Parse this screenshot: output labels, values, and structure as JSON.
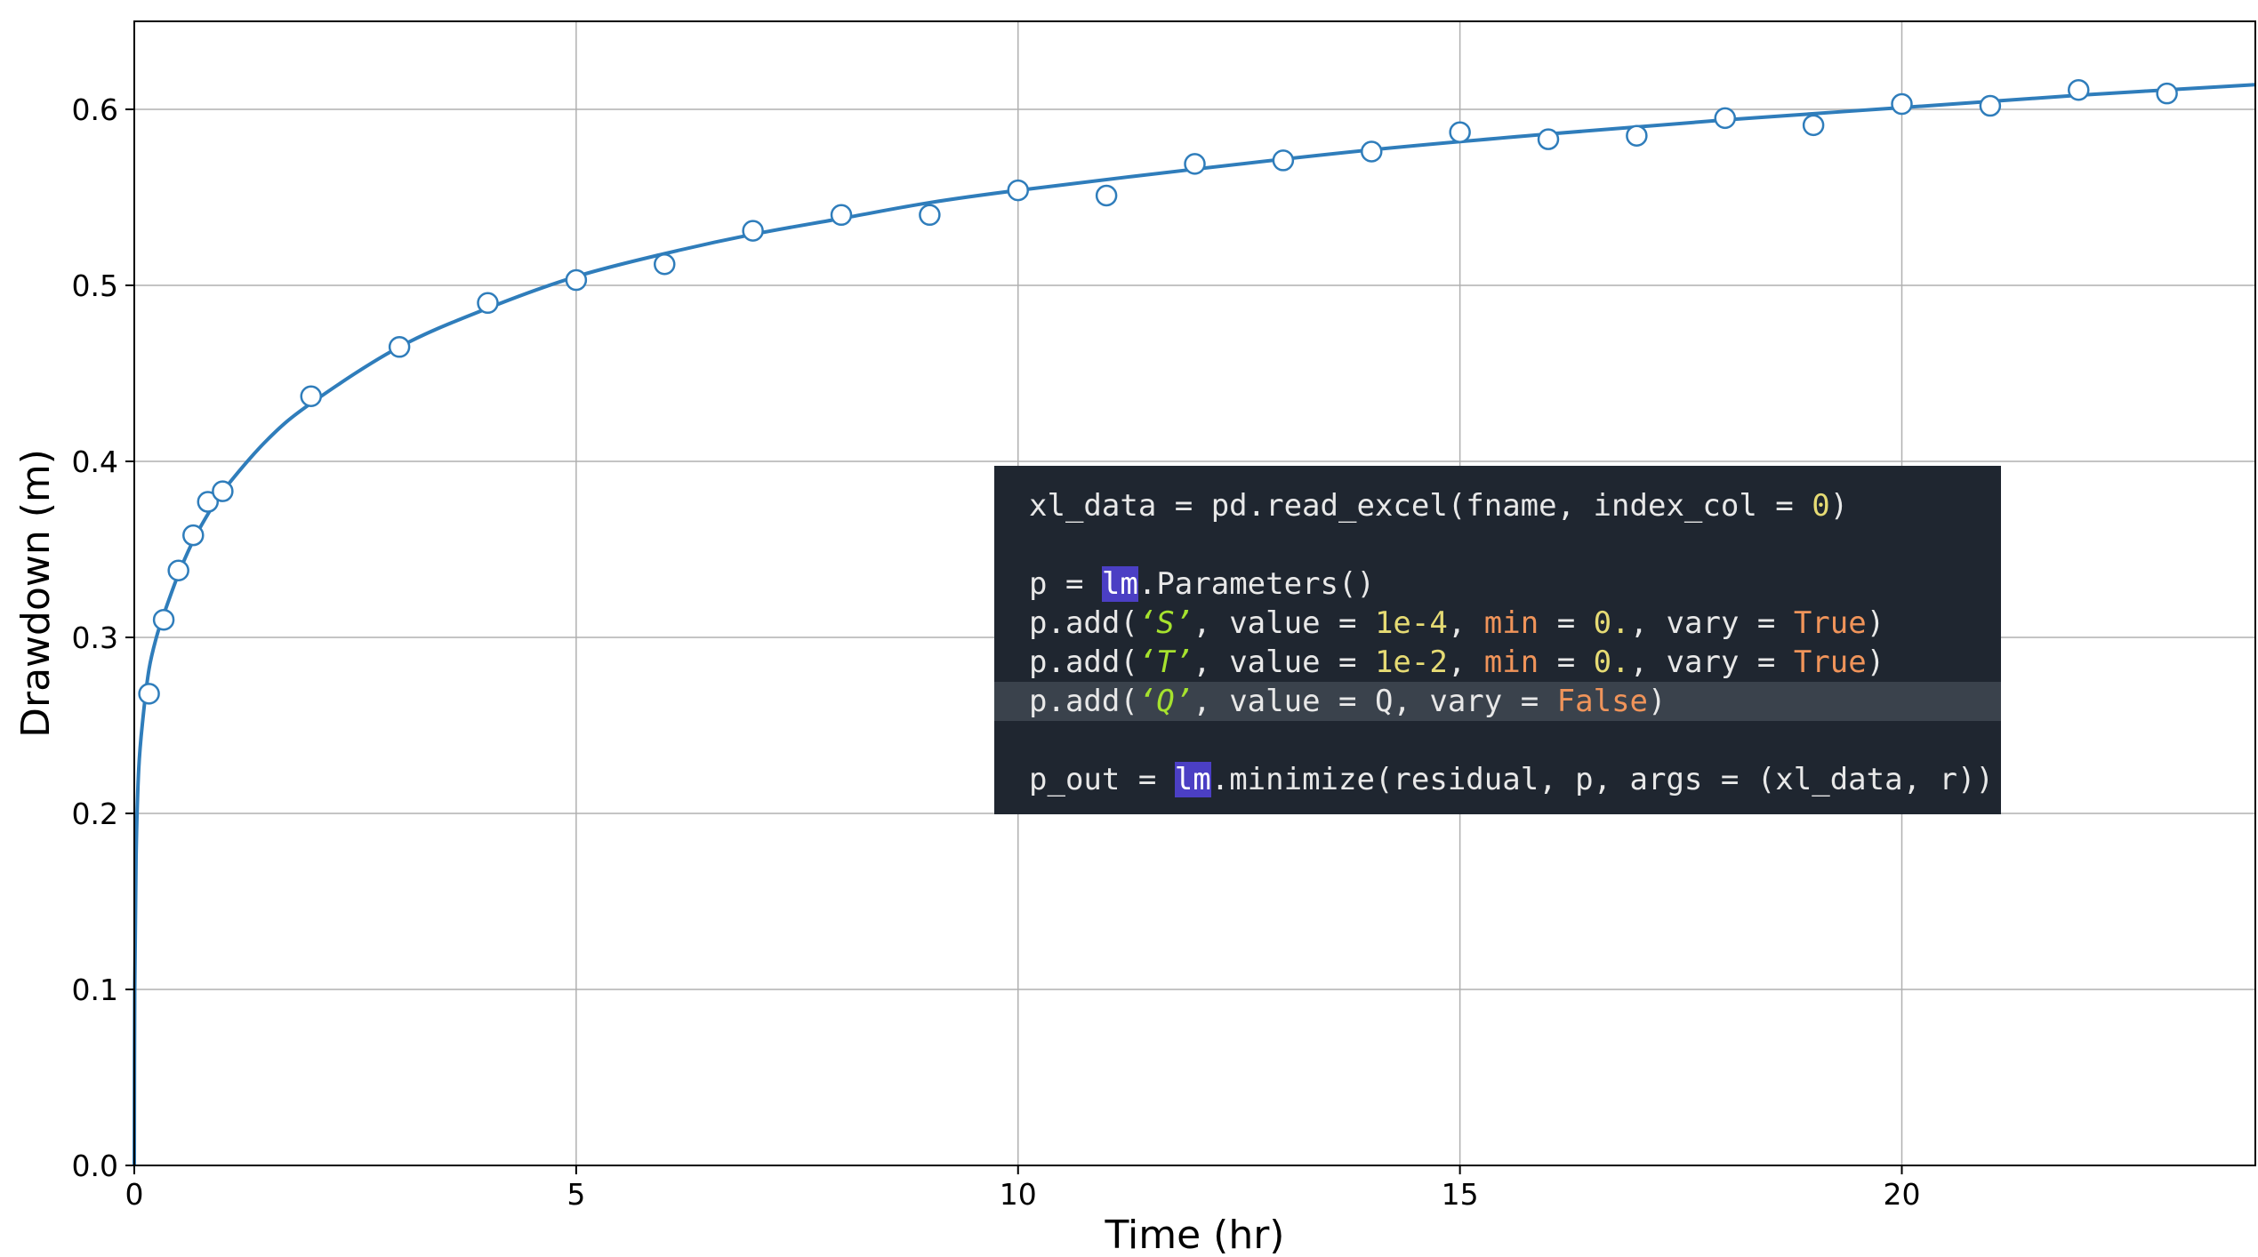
{
  "chart_data": {
    "type": "scatter",
    "xlabel": "Time (hr)",
    "ylabel": "Drawdown (m)",
    "xlim": [
      0,
      24
    ],
    "ylim": [
      0,
      0.65
    ],
    "xticks": [
      0,
      5,
      10,
      15,
      20
    ],
    "yticks": [
      0.0,
      0.1,
      0.2,
      0.3,
      0.4,
      0.5,
      0.6
    ],
    "xtick_labels": [
      "0",
      "5",
      "10",
      "15",
      "20"
    ],
    "ytick_labels": [
      "0.0",
      "0.1",
      "0.2",
      "0.3",
      "0.4",
      "0.5",
      "0.6"
    ],
    "grid": true,
    "series": [
      {
        "kind": "markers",
        "marker": "open-circle",
        "color": "#2f7dbb",
        "x": [
          0.167,
          0.333,
          0.5,
          0.667,
          0.833,
          1,
          2,
          3,
          4,
          5,
          6,
          7,
          8,
          9,
          10,
          11,
          12,
          13,
          14,
          15,
          16,
          17,
          18,
          19,
          20,
          21,
          22,
          23
        ],
        "y": [
          0.268,
          0.31,
          0.338,
          0.358,
          0.377,
          0.383,
          0.437,
          0.465,
          0.49,
          0.503,
          0.512,
          0.531,
          0.54,
          0.54,
          0.554,
          0.551,
          0.569,
          0.571,
          0.576,
          0.587,
          0.583,
          0.585,
          0.595,
          0.591,
          0.603,
          0.602,
          0.611,
          0.609
        ]
      },
      {
        "kind": "line",
        "color": "#2f7dbb",
        "x": [
          0,
          0.005,
          0.02,
          0.05,
          0.1,
          0.167,
          0.25,
          0.333,
          0.5,
          0.667,
          0.833,
          1,
          1.5,
          2,
          3,
          4,
          5,
          6,
          7,
          8,
          9,
          10,
          12,
          14,
          16,
          18,
          20,
          22,
          24
        ],
        "y": [
          0,
          0.1,
          0.175,
          0.225,
          0.255,
          0.282,
          0.3,
          0.313,
          0.336,
          0.355,
          0.37,
          0.383,
          0.412,
          0.433,
          0.465,
          0.487,
          0.505,
          0.518,
          0.529,
          0.538,
          0.547,
          0.554,
          0.566,
          0.577,
          0.586,
          0.594,
          0.601,
          0.608,
          0.614
        ]
      }
    ]
  },
  "code": {
    "lines": [
      [
        {
          "t": "xl_data = pd.read_excel(fname, index_col = "
        },
        {
          "t": "0",
          "c": "num"
        },
        {
          "t": ")"
        }
      ],
      [],
      [
        {
          "t": "p = "
        },
        {
          "t": "lm",
          "c": "sel"
        },
        {
          "t": ".Parameters()"
        }
      ],
      [
        {
          "t": "p.add("
        },
        {
          "t": "‘S’",
          "c": "str"
        },
        {
          "t": ", value = "
        },
        {
          "t": "1e-4",
          "c": "num"
        },
        {
          "t": ", "
        },
        {
          "t": "min",
          "c": "arg"
        },
        {
          "t": " = "
        },
        {
          "t": "0.",
          "c": "num"
        },
        {
          "t": ", vary = "
        },
        {
          "t": "True",
          "c": "bool"
        },
        {
          "t": ")"
        }
      ],
      [
        {
          "t": "p.add("
        },
        {
          "t": "‘T’",
          "c": "str"
        },
        {
          "t": ", value = "
        },
        {
          "t": "1e-2",
          "c": "num"
        },
        {
          "t": ", "
        },
        {
          "t": "min",
          "c": "arg"
        },
        {
          "t": " = "
        },
        {
          "t": "0.",
          "c": "num"
        },
        {
          "t": ", vary = "
        },
        {
          "t": "True",
          "c": "bool"
        },
        {
          "t": ")"
        }
      ],
      [
        {
          "t": "p.add("
        },
        {
          "t": "‘Q’",
          "c": "str"
        },
        {
          "t": ", value = Q, vary = "
        },
        {
          "t": "False",
          "c": "bool"
        },
        {
          "t": ")"
        }
      ],
      [],
      [
        {
          "t": "p_out = "
        },
        {
          "t": "lm",
          "c": "sel"
        },
        {
          "t": ".minimize(residual, p, args = (xl_data, r))"
        }
      ]
    ],
    "highlighted_line": 5
  }
}
